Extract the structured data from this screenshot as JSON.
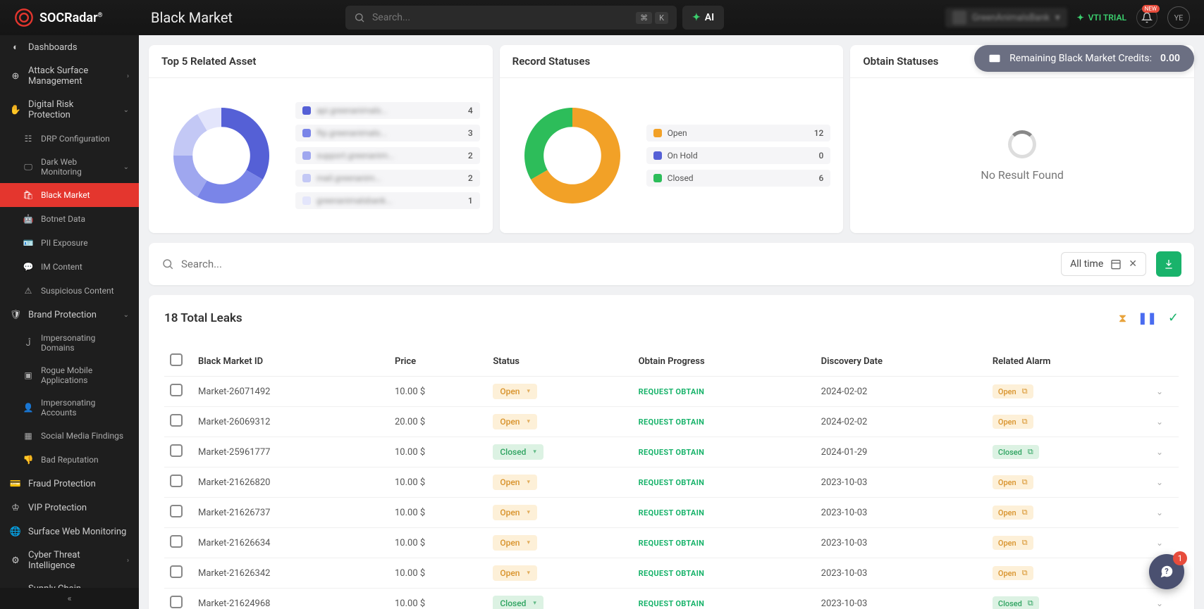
{
  "brand": "SOCRadar",
  "page_title": "Black Market",
  "search_placeholder": "Search...",
  "kbd1": "⌘",
  "kbd2": "K",
  "ai_label": "AI",
  "trial_label": "VTI TRIAL",
  "bell_badge": "NEW",
  "avatar_initials": "YE",
  "org_name": "GreenAnimalsBank",
  "credits": {
    "label": "Remaining Black Market Credits:",
    "value": "0.00"
  },
  "sidebar": {
    "dashboards": "Dashboards",
    "asm": "Attack Surface Management",
    "drp": "Digital Risk Protection",
    "drp_config": "DRP Configuration",
    "dwm": "Dark Web Monitoring",
    "black_market": "Black Market",
    "botnet": "Botnet Data",
    "pii": "PII Exposure",
    "im": "IM Content",
    "suspicious": "Suspicious Content",
    "brand": "Brand Protection",
    "imp_domains": "Impersonating Domains",
    "rogue_apps": "Rogue Mobile Applications",
    "imp_accounts": "Impersonating Accounts",
    "social": "Social Media Findings",
    "bad_rep": "Bad Reputation",
    "fraud": "Fraud Protection",
    "vip": "VIP Protection",
    "surface_web": "Surface Web Monitoring",
    "cti": "Cyber Threat Intelligence",
    "supply": "Supply Chain Intelligence"
  },
  "cards": {
    "top5": {
      "title": "Top 5 Related Asset",
      "donut": [
        {
          "color": "#5560d6",
          "value": 4
        },
        {
          "color": "#7a85e8",
          "value": 3
        },
        {
          "color": "#9fa7ef",
          "value": 2
        },
        {
          "color": "#c3c8f5",
          "value": 2
        },
        {
          "color": "#e3e5fb",
          "value": 1
        }
      ],
      "legend": [
        {
          "color": "#5560d6",
          "label": "api.greenanimals...",
          "value": "4"
        },
        {
          "color": "#7a85e8",
          "label": "ftp.greenanimals...",
          "value": "3"
        },
        {
          "color": "#9fa7ef",
          "label": "support.greenanim...",
          "value": "2"
        },
        {
          "color": "#c3c8f5",
          "label": "mail.greenanim...",
          "value": "2"
        },
        {
          "color": "#e3e5fb",
          "label": "greenanimalsbank...",
          "value": "1"
        }
      ]
    },
    "record": {
      "title": "Record Statuses",
      "donut": [
        {
          "color": "#f2a127",
          "value": 12
        },
        {
          "color": "#5560d6",
          "value": 0
        },
        {
          "color": "#2dbd5a",
          "value": 6
        }
      ],
      "legend": [
        {
          "color": "#f2a127",
          "label": "Open",
          "value": "12"
        },
        {
          "color": "#5560d6",
          "label": "On Hold",
          "value": "0"
        },
        {
          "color": "#2dbd5a",
          "label": "Closed",
          "value": "6"
        }
      ]
    },
    "obtain": {
      "title": "Obtain Statuses",
      "no_result": "No Result Found"
    }
  },
  "filter": {
    "search_placeholder": "Search...",
    "date": "All time"
  },
  "table": {
    "title": "18 Total Leaks",
    "columns": [
      "Black Market ID",
      "Price",
      "Status",
      "Obtain Progress",
      "Discovery Date",
      "Related Alarm"
    ],
    "obtain_label": "REQUEST OBTAIN",
    "rows": [
      {
        "id": "Market-26071492",
        "price": "10.00 $",
        "status": "Open",
        "date": "2024-02-02",
        "alarm": "Open"
      },
      {
        "id": "Market-26069312",
        "price": "20.00 $",
        "status": "Open",
        "date": "2024-02-02",
        "alarm": "Open"
      },
      {
        "id": "Market-25961777",
        "price": "10.00 $",
        "status": "Closed",
        "date": "2024-01-29",
        "alarm": "Closed"
      },
      {
        "id": "Market-21626820",
        "price": "10.00 $",
        "status": "Open",
        "date": "2023-10-03",
        "alarm": "Open"
      },
      {
        "id": "Market-21626737",
        "price": "10.00 $",
        "status": "Open",
        "date": "2023-10-03",
        "alarm": "Open"
      },
      {
        "id": "Market-21626634",
        "price": "10.00 $",
        "status": "Open",
        "date": "2023-10-03",
        "alarm": "Open"
      },
      {
        "id": "Market-21626342",
        "price": "10.00 $",
        "status": "Open",
        "date": "2023-10-03",
        "alarm": "Open"
      },
      {
        "id": "Market-21624968",
        "price": "10.00 $",
        "status": "Closed",
        "date": "2023-10-03",
        "alarm": "Closed"
      }
    ]
  },
  "chat_badge": "1"
}
